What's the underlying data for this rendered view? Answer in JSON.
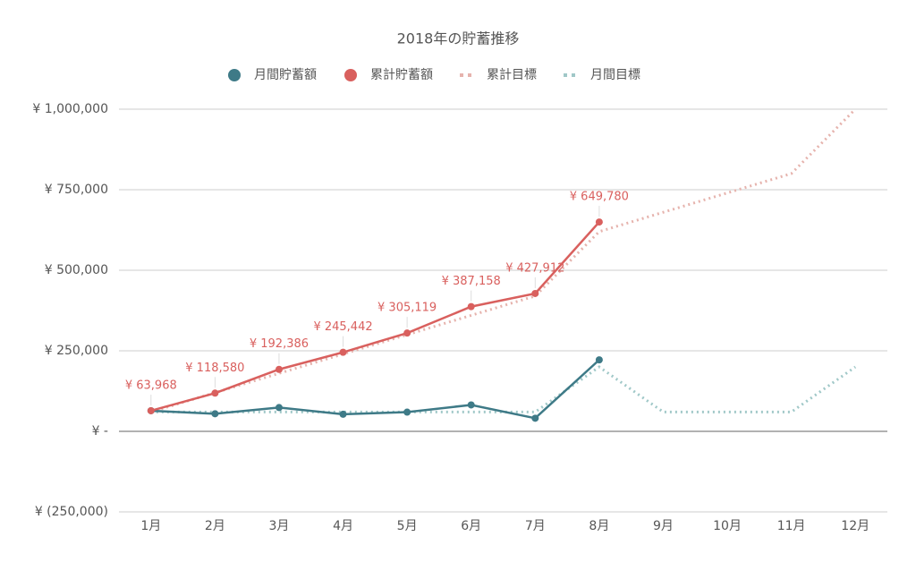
{
  "chart_data": {
    "type": "line",
    "title": "2018年の貯蓄推移",
    "categories": [
      "1月",
      "2月",
      "3月",
      "4月",
      "5月",
      "6月",
      "7月",
      "8月",
      "9月",
      "10月",
      "11月",
      "12月"
    ],
    "series": [
      {
        "name": "月間貯蓄額",
        "color": "#3e7a87",
        "style": "solid",
        "values": [
          63968,
          54612,
          73806,
          53056,
          59677,
          82039,
          40754,
          221868,
          null,
          null,
          null,
          null
        ]
      },
      {
        "name": "累計貯蓄額",
        "color": "#d9605e",
        "style": "solid",
        "values": [
          63968,
          118580,
          192386,
          245442,
          305119,
          387158,
          427912,
          649780,
          null,
          null,
          null,
          null
        ],
        "value_labels": [
          "¥ 63,968",
          "¥ 118,580",
          "¥ 192,386",
          "¥ 245,442",
          "¥ 305,119",
          "¥ 387,158",
          "¥ 427,912",
          "¥ 649,780",
          null,
          null,
          null,
          null
        ]
      },
      {
        "name": "累計目標",
        "color": "#e6b3ad",
        "style": "dotted",
        "values": [
          60000,
          120000,
          180000,
          240000,
          300000,
          360000,
          420000,
          620000,
          680000,
          740000,
          800000,
          1000000
        ]
      },
      {
        "name": "月間目標",
        "color": "#a0c8c8",
        "style": "dotted",
        "values": [
          60000,
          60000,
          60000,
          60000,
          60000,
          60000,
          60000,
          200000,
          60000,
          60000,
          60000,
          200000
        ]
      }
    ],
    "ylim": [
      -250000,
      1000000
    ],
    "yticks": [
      {
        "value": -250000,
        "label": "¥ (250,000)"
      },
      {
        "value": 0,
        "label": "¥ -"
      },
      {
        "value": 250000,
        "label": "¥ 250,000"
      },
      {
        "value": 500000,
        "label": "¥ 500,000"
      },
      {
        "value": 750000,
        "label": "¥ 750,000"
      },
      {
        "value": 1000000,
        "label": "¥ 1,000,000"
      }
    ],
    "grid": true,
    "legend": "top"
  }
}
